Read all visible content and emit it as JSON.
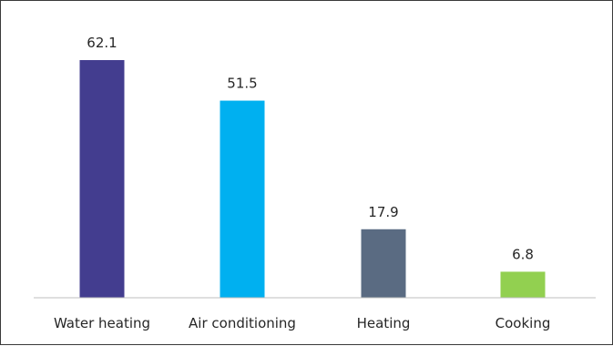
{
  "chart_data": {
    "type": "bar",
    "categories": [
      "Water heating",
      "Air conditioning",
      "Heating",
      "Cooking"
    ],
    "values": [
      62.1,
      51.5,
      17.9,
      6.8
    ],
    "colors": [
      "#433d8f",
      "#00b0f0",
      "#5a6b82",
      "#92d050"
    ],
    "axis_color": "#bfbfbf",
    "ylim": [
      0,
      62.1
    ],
    "grid": false,
    "legend": "none"
  }
}
